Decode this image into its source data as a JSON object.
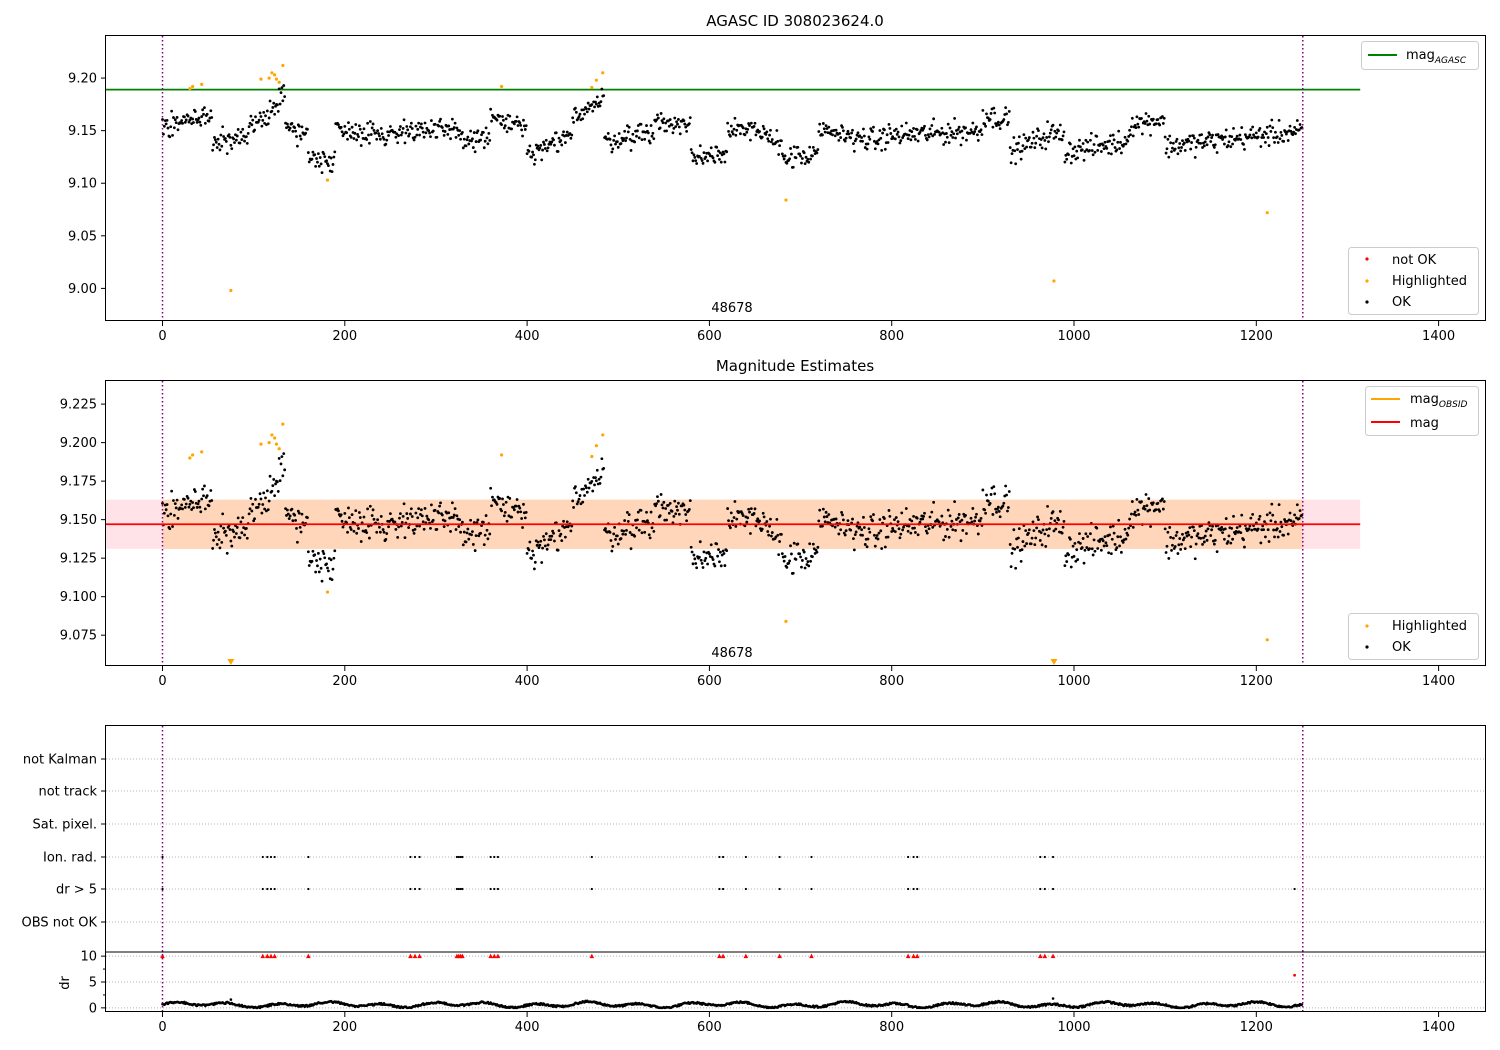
{
  "chart_data": [
    {
      "type": "scatter",
      "title": "AGASC ID 308023624.0",
      "xlim": [
        -62,
        1452
      ],
      "ylim": [
        8.969,
        9.24
      ],
      "xticks": [
        0,
        200,
        400,
        600,
        800,
        1000,
        1200,
        1400
      ],
      "yticks": [
        9.0,
        9.05,
        9.1,
        9.15,
        9.2
      ],
      "ytick_labels": [
        "9.00",
        "9.05",
        "9.10",
        "9.15",
        "9.20"
      ],
      "vlines": [
        0,
        1251
      ],
      "hline": {
        "label": "mag",
        "label_sub": "AGASC",
        "y": 9.189,
        "x_range": [
          -62,
          1314
        ],
        "color": "#008000"
      },
      "obsid_label": {
        "text": "48678",
        "x": 623
      },
      "highlighted": {
        "x": [
          30,
          33,
          43,
          75,
          108,
          117,
          120,
          123,
          125,
          128,
          132,
          181,
          372,
          471,
          476,
          483,
          684,
          978,
          1212
        ],
        "y": [
          9.19,
          9.192,
          9.194,
          8.998,
          9.199,
          9.2,
          9.205,
          9.203,
          9.199,
          9.196,
          9.212,
          9.103,
          9.192,
          9.191,
          9.198,
          9.205,
          9.084,
          9.007,
          9.072
        ]
      },
      "ok_series": {
        "n": 1251,
        "base": 9.147,
        "segments": [
          {
            "x": [
              0,
              55
            ],
            "y": [
              9.155,
              9.165
            ]
          },
          {
            "x": [
              55,
              95
            ],
            "y": [
              9.138,
              9.142
            ]
          },
          {
            "x": [
              95,
              135
            ],
            "y": [
              9.15,
              9.185
            ]
          },
          {
            "x": [
              135,
              160
            ],
            "y": [
              9.155,
              9.145
            ]
          },
          {
            "x": [
              160,
              190
            ],
            "y": [
              9.125,
              9.122
            ]
          },
          {
            "x": [
              190,
              260
            ],
            "y": [
              9.152,
              9.145
            ]
          },
          {
            "x": [
              260,
              330
            ],
            "y": [
              9.152,
              9.148
            ]
          },
          {
            "x": [
              330,
              360
            ],
            "y": [
              9.14,
              9.145
            ]
          },
          {
            "x": [
              360,
              400
            ],
            "y": [
              9.162,
              9.152
            ]
          },
          {
            "x": [
              400,
              450
            ],
            "y": [
              9.125,
              9.145
            ]
          },
          {
            "x": [
              450,
              485
            ],
            "y": [
              9.165,
              9.18
            ]
          },
          {
            "x": [
              485,
              540
            ],
            "y": [
              9.14,
              9.15
            ]
          },
          {
            "x": [
              540,
              580
            ],
            "y": [
              9.158,
              9.155
            ]
          },
          {
            "x": [
              580,
              620
            ],
            "y": [
              9.125,
              9.13
            ]
          },
          {
            "x": [
              620,
              680
            ],
            "y": [
              9.155,
              9.14
            ]
          },
          {
            "x": [
              680,
              720
            ],
            "y": [
              9.125,
              9.125
            ]
          },
          {
            "x": [
              720,
              790
            ],
            "y": [
              9.15,
              9.14
            ]
          },
          {
            "x": [
              790,
              900
            ],
            "y": [
              9.145,
              9.15
            ]
          },
          {
            "x": [
              900,
              930
            ],
            "y": [
              9.165,
              9.16
            ]
          },
          {
            "x": [
              930,
              970
            ],
            "y": [
              9.13,
              9.145
            ]
          },
          {
            "x": [
              970,
              990
            ],
            "y": [
              9.148,
              9.145
            ]
          },
          {
            "x": [
              990,
              1060
            ],
            "y": [
              9.13,
              9.14
            ]
          },
          {
            "x": [
              1060,
              1100
            ],
            "y": [
              9.155,
              9.162
            ]
          },
          {
            "x": [
              1100,
              1251
            ],
            "y": [
              9.135,
              9.15
            ]
          }
        ],
        "noise": 0.012
      },
      "legend_top": [
        {
          "label": "mag",
          "label_sub": "AGASC",
          "color": "#008000",
          "kind": "line"
        }
      ],
      "legend_bottom": [
        {
          "label": "not OK",
          "color": "#ff0000",
          "kind": "marker"
        },
        {
          "label": "Highlighted",
          "color": "#ffa500",
          "kind": "marker"
        },
        {
          "label": "OK",
          "color": "#000000",
          "kind": "marker"
        }
      ]
    },
    {
      "type": "scatter",
      "title": "Magnitude Estimates",
      "xlim": [
        -62,
        1452
      ],
      "ylim": [
        9.055,
        9.24
      ],
      "xticks": [
        0,
        200,
        400,
        600,
        800,
        1000,
        1200,
        1400
      ],
      "yticks": [
        9.075,
        9.1,
        9.125,
        9.15,
        9.175,
        9.2,
        9.225
      ],
      "ytick_labels": [
        "9.075",
        "9.100",
        "9.125",
        "9.150",
        "9.175",
        "9.200",
        "9.225"
      ],
      "vlines": [
        0,
        1251
      ],
      "mag_line": {
        "label": "mag",
        "y": 9.147,
        "x_range": [
          -62,
          1314
        ],
        "color": "#ff0000"
      },
      "mag_band": {
        "y_range": [
          9.131,
          9.163
        ],
        "x_range": [
          -62,
          1314
        ],
        "color": "#ffc0cb"
      },
      "obsid_band": {
        "y_range": [
          9.131,
          9.163
        ],
        "x_range": [
          0,
          1251
        ],
        "color": "#ffa500",
        "label": "mag",
        "label_sub": "OBSID"
      },
      "obsid_label": {
        "text": "48678",
        "x": 623
      },
      "highlighted": {
        "x": [
          30,
          33,
          43,
          108,
          117,
          120,
          123,
          125,
          128,
          132,
          181,
          372,
          471,
          476,
          483,
          684,
          1212
        ],
        "y": [
          9.19,
          9.192,
          9.194,
          9.199,
          9.2,
          9.205,
          9.203,
          9.199,
          9.196,
          9.212,
          9.103,
          9.192,
          9.191,
          9.198,
          9.205,
          9.084,
          9.072
        ]
      },
      "below_range_markers": {
        "x": [
          75,
          978
        ]
      },
      "legend_top": [
        {
          "label": "mag",
          "label_sub": "OBSID",
          "color": "#ffa500",
          "kind": "line"
        },
        {
          "label": "mag",
          "color": "#ff0000",
          "kind": "line"
        }
      ],
      "legend_bottom": [
        {
          "label": "Highlighted",
          "color": "#ffa500",
          "kind": "marker"
        },
        {
          "label": "OK",
          "color": "#000000",
          "kind": "marker"
        }
      ]
    },
    {
      "type": "scatter",
      "title": "",
      "xlim": [
        -62,
        1452
      ],
      "xticks": [
        0,
        200,
        400,
        600,
        800,
        1000,
        1200,
        1400
      ],
      "vlines": [
        0,
        1251
      ],
      "flag_rows": [
        "not Kalman",
        "not track",
        "Sat. pixel.",
        "Ion. rad.",
        "dr > 5",
        "OBS not OK"
      ],
      "flags": {
        "Ion. rad.": [
          0,
          110,
          115,
          119,
          123,
          160,
          272,
          277,
          282,
          323,
          325,
          327,
          329,
          360,
          364,
          368,
          471,
          611,
          615,
          640,
          677,
          712,
          818,
          824,
          828,
          963,
          968,
          977
        ],
        "dr > 5": [
          0,
          110,
          115,
          119,
          123,
          160,
          272,
          277,
          282,
          323,
          325,
          327,
          329,
          360,
          364,
          368,
          471,
          611,
          615,
          640,
          677,
          712,
          818,
          824,
          828,
          963,
          968,
          977,
          1242
        ]
      },
      "dr": {
        "ylabel": "dr",
        "yticks": [
          0,
          5,
          10
        ],
        "ylim": [
          -0.8,
          10.8
        ],
        "clipped_x": [
          0,
          110,
          115,
          119,
          123,
          160,
          272,
          277,
          282,
          323,
          325,
          327,
          329,
          360,
          364,
          368,
          471,
          611,
          615,
          640,
          677,
          712,
          818,
          824,
          828,
          963,
          968,
          977
        ],
        "outlier": {
          "x": 1242,
          "y": 6.3
        },
        "baseline": 0.6
      }
    }
  ]
}
